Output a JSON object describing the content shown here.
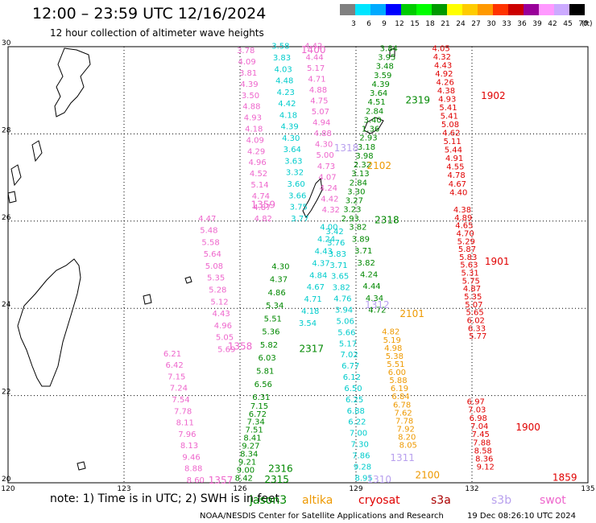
{
  "title": "12:00 – 23:59 UTC 12/16/2024",
  "subtitle": "12 hour collection of altimeter wave heights",
  "colorbar": {
    "unit": "(ft)",
    "labels": [
      "3",
      "6",
      "9",
      "12",
      "15",
      "18",
      "21",
      "24",
      "27",
      "30",
      "33",
      "36",
      "39",
      "42",
      "45",
      "70"
    ],
    "colors": [
      "#808080",
      "#00e5ff",
      "#00aaff",
      "#0000ff",
      "#00cc00",
      "#00ff00",
      "#009900",
      "#ffff00",
      "#ffcc00",
      "#ff9900",
      "#ff3300",
      "#cc0000",
      "#990099",
      "#ff99ff",
      "#ccaaff",
      "#000000"
    ]
  },
  "map": {
    "lon_range": [
      120,
      135
    ],
    "lat_range": [
      20,
      30
    ],
    "x_ticks": [
      "120",
      "123",
      "126",
      "129",
      "132",
      "135"
    ],
    "y_ticks": [
      "30",
      "28",
      "26",
      "24",
      "22",
      "20"
    ],
    "grid": "dotted"
  },
  "tracks": [
    {
      "id": "1902",
      "color": "#e00000",
      "pass_label": "1902",
      "label_lon": 132.55,
      "label_lat": 28.8,
      "lon_start": 131.2,
      "lon_end": 131.65,
      "lat_start": 29.9,
      "lat_end": 26.6,
      "values": [
        "4.05",
        "4.32",
        "4.43",
        "4.92",
        "4.26",
        "4.38",
        "4.93",
        "5.41",
        "5.41",
        "5.08",
        "4.62",
        "5.11",
        "5.44",
        "4.91",
        "4.55",
        "4.78",
        "4.67",
        "4.40"
      ]
    },
    {
      "id": "1901",
      "color": "#e00000",
      "pass_label": "1901",
      "label_lon": 132.65,
      "label_lat": 25.0,
      "lon_start": 131.75,
      "lon_end": 132.15,
      "lat_start": 26.2,
      "lat_end": 23.3,
      "values": [
        "4.38",
        "4.89",
        "4.65",
        "4.70",
        "5.29",
        "5.87",
        "5.83",
        "5.63",
        "5.31",
        "5.75",
        "4.87",
        "5.35",
        "5.07",
        "5.65",
        "6.02",
        "6.33",
        "5.77"
      ]
    },
    {
      "id": "1900",
      "color": "#e00000",
      "pass_label": "1900",
      "label_lon": 133.45,
      "label_lat": 21.2,
      "lon_start": 132.1,
      "lon_end": 132.35,
      "lat_start": 21.8,
      "lat_end": 20.3,
      "values": [
        "6.97",
        "7.03",
        "6.98",
        "7.04",
        "7.45",
        "7.88",
        "8.58",
        "8.36",
        "9.12"
      ]
    },
    {
      "id": "1859",
      "color": "#e00000",
      "pass_label": "1859",
      "label_lon": 134.4,
      "label_lat": 20.05,
      "lon_start": 0,
      "lon_end": 0,
      "lat_start": 0,
      "lat_end": 0,
      "values": []
    },
    {
      "id": "2319",
      "color": "#008800",
      "pass_label": "2319",
      "label_lon": 130.6,
      "label_lat": 28.7,
      "lon_start": 129.85,
      "lon_end": 128.85,
      "lat_start": 29.9,
      "lat_end": 26.0,
      "values": [
        "3.84",
        "3.95",
        "3.48",
        "3.59",
        "4.39",
        "3.64",
        "4.51",
        "2.84",
        "3.40",
        "1.36",
        "2.93",
        "3.18",
        "3.98",
        "2.32",
        "3.13",
        "2.84",
        "3.30",
        "3.27",
        "3.23",
        "2.93"
      ]
    },
    {
      "id": "2318",
      "color": "#008800",
      "pass_label": "2318",
      "label_lon": 129.8,
      "label_lat": 25.95,
      "lon_start": 129.05,
      "lon_end": 129.55,
      "lat_start": 25.8,
      "lat_end": 23.9,
      "values": [
        "3.82",
        "3.89",
        "3.71",
        "3.82",
        "4.24",
        "4.44",
        "4.34",
        "4.72"
      ]
    },
    {
      "id": "2317",
      "color": "#008800",
      "pass_label": "2317",
      "label_lon": 127.85,
      "label_lat": 23.0,
      "lon_start": 127.05,
      "lon_end": 126.55,
      "lat_start": 24.9,
      "lat_end": 21.9,
      "values": [
        "4.30",
        "4.37",
        "4.86",
        "5.34",
        "5.51",
        "5.36",
        "5.82",
        "6.03",
        "5.81",
        "6.56",
        "6.31"
      ]
    },
    {
      "id": "2316",
      "color": "#008800",
      "pass_label": "2316",
      "label_lon": 127.05,
      "label_lat": 20.25,
      "lon_start": 126.5,
      "lon_end": 126.1,
      "lat_start": 21.7,
      "lat_end": 20.05,
      "values": [
        "7.15",
        "6.72",
        "7.34",
        "7.51",
        "8.41",
        "9.27",
        "8.34",
        "9.21",
        "9.00",
        "8.42"
      ]
    },
    {
      "id": "2315",
      "color": "#008800",
      "pass_label": "2315",
      "label_lon": 126.95,
      "label_lat": 20.0,
      "lon_start": 0,
      "lon_end": 0,
      "lat_start": 0,
      "lat_end": 0,
      "values": []
    },
    {
      "id": "2101",
      "color": "#ee9900",
      "pass_label": "2101",
      "label_lon": 130.45,
      "label_lat": 23.8,
      "lon_start": 129.9,
      "lon_end": 130.35,
      "lat_start": 23.4,
      "lat_end": 20.8,
      "values": [
        "4.82",
        "5.19",
        "4.98",
        "5.38",
        "5.51",
        "6.00",
        "5.88",
        "6.19",
        "6.84",
        "6.78",
        "7.62",
        "7.78",
        "7.92",
        "8.20",
        "8.05"
      ]
    },
    {
      "id": "2102",
      "color": "#ee9900",
      "pass_label": "2102",
      "label_lon": 129.6,
      "label_lat": 27.2,
      "lon_start": 0,
      "lon_end": 0,
      "lat_start": 0,
      "lat_end": 0,
      "values": []
    },
    {
      "id": "2100",
      "color": "#ee9900",
      "pass_label": "2100",
      "label_lon": 130.85,
      "label_lat": 20.1,
      "lon_start": 0,
      "lon_end": 0,
      "lat_start": 0,
      "lat_end": 0,
      "values": []
    },
    {
      "id": "1400",
      "color": "#ee66cc",
      "pass_label": "1400",
      "label_lon": 127.9,
      "label_lat": 29.85,
      "lon_start": 127.9,
      "lon_end": 128.35,
      "lat_start": 29.95,
      "lat_end": 26.2,
      "values": [
        "4.42",
        "4.44",
        "5.17",
        "4.71",
        "4.88",
        "4.75",
        "5.07",
        "4.94",
        "4.88",
        "4.30",
        "5.00",
        "4.73",
        "4.07",
        "4.24",
        "4.42",
        "4.32"
      ]
    },
    {
      "id": "1359",
      "color": "#ee66cc",
      "pass_label": "1359",
      "label_lon": 126.6,
      "label_lat": 26.3,
      "lon_start": 126.15,
      "lon_end": 126.6,
      "lat_start": 29.85,
      "lat_end": 26.0,
      "values": [
        "3.78",
        "4.09",
        "3.81",
        "4.39",
        "3.50",
        "4.88",
        "4.93",
        "4.18",
        "4.09",
        "4.29",
        "4.96",
        "4.52",
        "5.14",
        "4.74",
        "4.87",
        "4.82"
      ]
    },
    {
      "id": "1358",
      "color": "#ee66cc",
      "pass_label": "1358",
      "label_lon": 126.0,
      "label_lat": 23.05,
      "lon_start": 125.15,
      "lon_end": 125.65,
      "lat_start": 26.0,
      "lat_end": 23.0,
      "values": [
        "4.47",
        "5.48",
        "5.58",
        "5.64",
        "5.08",
        "5.35",
        "5.28",
        "5.12",
        "4.43",
        "4.96",
        "5.05",
        "5.69"
      ]
    },
    {
      "id": "1357",
      "color": "#ee66cc",
      "pass_label": "1357",
      "label_lon": 125.5,
      "label_lat": 19.98,
      "lon_start": 124.25,
      "lon_end": 124.85,
      "lat_start": 22.9,
      "lat_end": 20.0,
      "values": [
        "6.21",
        "6.42",
        "7.15",
        "7.24",
        "7.54",
        "7.78",
        "8.11",
        "7.96",
        "8.13",
        "9.46",
        "8.88",
        "8.60"
      ]
    },
    {
      "id": "13xx_a",
      "color": "#b8a0ee",
      "pass_label": "1318",
      "label_lon": 128.75,
      "label_lat": 27.6,
      "lon_start": 0,
      "lon_end": 0,
      "lat_start": 0,
      "lat_end": 0,
      "values": []
    },
    {
      "id": "13xx_b",
      "color": "#b8a0ee",
      "pass_label": "1312",
      "label_lon": 129.55,
      "label_lat": 24.0,
      "lon_start": 0,
      "lon_end": 0,
      "lat_start": 0,
      "lat_end": 0,
      "values": []
    },
    {
      "id": "13xx_c",
      "color": "#b8a0ee",
      "pass_label": "1311",
      "label_lon": 130.2,
      "label_lat": 20.5,
      "lon_start": 0,
      "lon_end": 0,
      "lat_start": 0,
      "lat_end": 0,
      "values": []
    },
    {
      "id": "13xx_d",
      "color": "#b8a0ee",
      "pass_label": "1310",
      "label_lon": 129.6,
      "label_lat": 20.0,
      "lon_start": 0,
      "lon_end": 0,
      "lat_start": 0,
      "lat_end": 0,
      "values": []
    },
    {
      "id": "center_a",
      "color": "#00cccc",
      "pass_label": "",
      "label_lon": 0,
      "label_lat": 0,
      "lon_start": 127.05,
      "lon_end": 127.55,
      "lat_start": 29.95,
      "lat_end": 26.0,
      "values": [
        "3.58",
        "3.83",
        "4.03",
        "4.48",
        "4.23",
        "4.42",
        "4.18",
        "4.39",
        "4.30",
        "3.64",
        "3.63",
        "3.32",
        "3.60",
        "3.66",
        "3.75",
        "3.77"
      ]
    },
    {
      "id": "center_b",
      "color": "#00cccc",
      "pass_label": "",
      "label_lon": 0,
      "label_lat": 0,
      "lon_start": 128.3,
      "lon_end": 127.75,
      "lat_start": 25.8,
      "lat_end": 23.6,
      "values": [
        "4.00",
        "4.24",
        "4.43",
        "4.37",
        "4.84",
        "4.67",
        "4.71",
        "4.18",
        "3.54"
      ]
    },
    {
      "id": "center_c",
      "color": "#00cccc",
      "pass_label": "",
      "label_lon": 0,
      "label_lat": 0,
      "lon_start": 128.45,
      "lon_end": 129.2,
      "lat_start": 25.7,
      "lat_end": 20.05,
      "values": [
        "3.42",
        "3.76",
        "3.83",
        "3.71",
        "3.65",
        "3.82",
        "4.76",
        "3.94",
        "5.06",
        "5.66",
        "5.17",
        "7.02",
        "6.77",
        "6.12",
        "6.50",
        "6.25",
        "6.88",
        "6.22",
        "7.00",
        "7.30",
        "7.86",
        "9.28",
        "8.95"
      ]
    }
  ],
  "note": "note:  1) Time is in UTC;  2) SWH is in feet",
  "legend": [
    {
      "name": "jason3",
      "color": "#008800"
    },
    {
      "name": "altika",
      "color": "#ee9900"
    },
    {
      "name": "cryosat",
      "color": "#e00000"
    },
    {
      "name": "s3a",
      "color": "#aa0000"
    },
    {
      "name": "s3b",
      "color": "#b8a0ee"
    },
    {
      "name": "swot",
      "color": "#ee66cc"
    }
  ],
  "footer": {
    "center": "NOAA/NESDIS Center for Satellite Applications and Research",
    "right": "19 Dec 08:26:10 UTC 2024"
  }
}
